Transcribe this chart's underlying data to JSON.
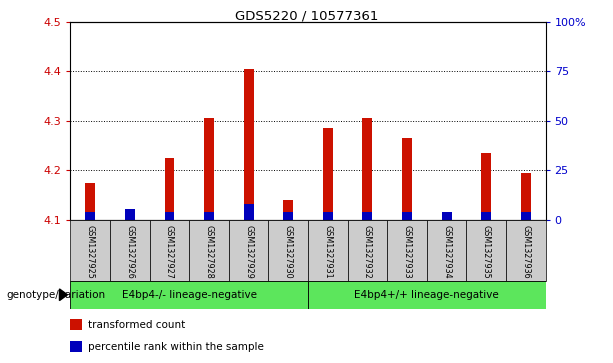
{
  "title": "GDS5220 / 10577361",
  "samples": [
    "GSM1327925",
    "GSM1327926",
    "GSM1327927",
    "GSM1327928",
    "GSM1327929",
    "GSM1327930",
    "GSM1327931",
    "GSM1327932",
    "GSM1327933",
    "GSM1327934",
    "GSM1327935",
    "GSM1327936"
  ],
  "red_values": [
    4.175,
    4.112,
    4.225,
    4.305,
    4.405,
    4.14,
    4.285,
    4.305,
    4.265,
    4.112,
    4.235,
    4.195
  ],
  "blue_values": [
    4.115,
    4.122,
    4.115,
    4.115,
    4.132,
    4.115,
    4.115,
    4.115,
    4.115,
    4.115,
    4.115,
    4.115
  ],
  "base": 4.1,
  "ylim_left": [
    4.1,
    4.5
  ],
  "yticks_left": [
    4.1,
    4.2,
    4.3,
    4.4,
    4.5
  ],
  "ylim_right": [
    0,
    100
  ],
  "yticks_right": [
    0,
    25,
    50,
    75,
    100
  ],
  "yticklabels_right": [
    "0",
    "25",
    "50",
    "75",
    "100%"
  ],
  "groups": [
    {
      "label": "E4bp4-/- lineage-negative",
      "start": 0,
      "end": 5,
      "color": "#5ce65c"
    },
    {
      "label": "E4bp4+/+ lineage-negative",
      "start": 6,
      "end": 11,
      "color": "#5ce65c"
    }
  ],
  "group_label": "genotype/variation",
  "legend_items": [
    {
      "color": "#cc1100",
      "label": "transformed count"
    },
    {
      "color": "#0000bb",
      "label": "percentile rank within the sample"
    }
  ],
  "bar_width": 0.25,
  "red_color": "#cc1100",
  "blue_color": "#0000bb",
  "bg_color": "#cccccc",
  "left_tick_color": "#cc0000",
  "right_tick_color": "#0000cc"
}
